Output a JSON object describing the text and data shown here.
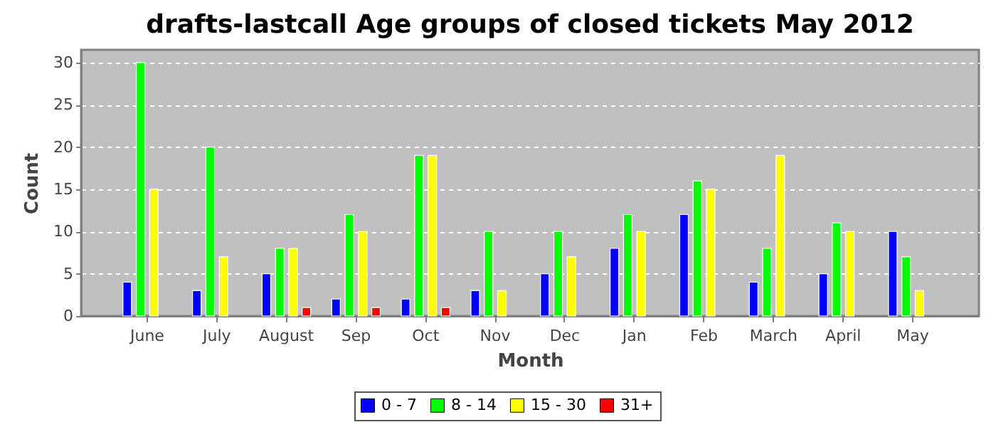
{
  "chart_data": {
    "type": "bar",
    "title": "drafts-lastcall Age groups of closed tickets May 2012",
    "xlabel": "Month",
    "ylabel": "Count",
    "categories": [
      "June",
      "July",
      "August",
      "Sep",
      "Oct",
      "Nov",
      "Dec",
      "Jan",
      "Feb",
      "March",
      "April",
      "May"
    ],
    "series": [
      {
        "name": "0 - 7",
        "color": "#0000ff",
        "values": [
          4,
          3,
          5,
          2,
          2,
          3,
          5,
          8,
          12,
          4,
          5,
          10
        ]
      },
      {
        "name": "8 - 14",
        "color": "#00ff00",
        "values": [
          30,
          20,
          8,
          12,
          19,
          10,
          10,
          12,
          16,
          8,
          11,
          7
        ]
      },
      {
        "name": "15 - 30",
        "color": "#ffff00",
        "values": [
          15,
          7,
          8,
          10,
          19,
          3,
          7,
          10,
          15,
          19,
          10,
          3
        ]
      },
      {
        "name": "31+",
        "color": "#ff0000",
        "values": [
          0,
          0,
          1,
          1,
          1,
          0,
          0,
          0,
          0,
          0,
          0,
          0
        ]
      }
    ],
    "ylim": [
      0,
      31.5
    ],
    "yticks": [
      0,
      5,
      10,
      15,
      20,
      25,
      30
    ],
    "grid": "y",
    "legend": "bottom"
  }
}
